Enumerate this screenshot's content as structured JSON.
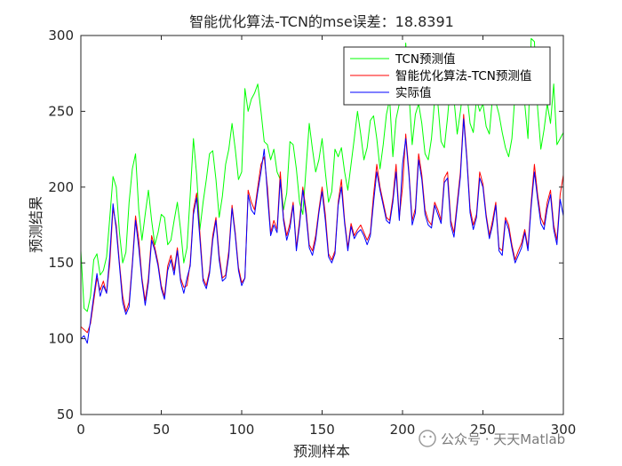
{
  "chart_data": {
    "type": "line",
    "title": "智能优化算法-TCN的mse误差：18.8391",
    "xlabel": "预测样本",
    "ylabel": "预测结果",
    "xlim": [
      0,
      300
    ],
    "ylim": [
      50,
      300
    ],
    "xticks": [
      "0",
      "50",
      "100",
      "150",
      "200",
      "250",
      "300"
    ],
    "yticks": [
      "50",
      "100",
      "150",
      "200",
      "250",
      "300"
    ],
    "grid": false,
    "legend_position": "top-right",
    "series": [
      {
        "name": "TCN预测值",
        "color": "#00ff00",
        "x": [
          0,
          2,
          4,
          6,
          8,
          10,
          12,
          14,
          16,
          18,
          20,
          22,
          24,
          26,
          28,
          30,
          32,
          34,
          36,
          38,
          40,
          42,
          44,
          46,
          48,
          50,
          52,
          54,
          56,
          58,
          60,
          62,
          64,
          66,
          68,
          70,
          72,
          74,
          76,
          78,
          80,
          82,
          84,
          86,
          88,
          90,
          92,
          94,
          96,
          98,
          100,
          102,
          104,
          106,
          108,
          110,
          112,
          114,
          116,
          118,
          120,
          122,
          124,
          126,
          128,
          130,
          132,
          134,
          136,
          138,
          140,
          142,
          144,
          146,
          148,
          150,
          152,
          154,
          156,
          158,
          160,
          162,
          164,
          166,
          168,
          170,
          172,
          174,
          176,
          178,
          180,
          182,
          184,
          186,
          188,
          190,
          192,
          194,
          196,
          198,
          200,
          202,
          204,
          206,
          208,
          210,
          212,
          214,
          216,
          218,
          220,
          222,
          224,
          226,
          228,
          230,
          232,
          234,
          236,
          238,
          240,
          242,
          244,
          246,
          248,
          250,
          252,
          254,
          256,
          258,
          260,
          262,
          264,
          266,
          268,
          270,
          272,
          274,
          276,
          278,
          280,
          282,
          284,
          286,
          288,
          290,
          292,
          294,
          296,
          298,
          300
        ],
        "y": [
          158,
          120,
          118,
          128,
          152,
          156,
          142,
          145,
          154,
          180,
          207,
          200,
          170,
          150,
          157,
          190,
          212,
          222,
          185,
          165,
          182,
          198,
          178,
          162,
          170,
          182,
          180,
          162,
          165,
          178,
          190,
          172,
          150,
          160,
          195,
          232,
          208,
          172,
          190,
          205,
          222,
          224,
          205,
          180,
          194,
          215,
          225,
          242,
          225,
          205,
          210,
          265,
          250,
          258,
          262,
          268,
          250,
          230,
          228,
          218,
          225,
          210,
          205,
          185,
          196,
          230,
          228,
          212,
          190,
          182,
          212,
          242,
          225,
          210,
          218,
          232,
          210,
          190,
          197,
          225,
          220,
          226,
          210,
          198,
          215,
          232,
          250,
          235,
          218,
          226,
          244,
          247,
          232,
          212,
          228,
          248,
          258,
          220,
          245,
          255,
          260,
          295,
          262,
          228,
          248,
          255,
          242,
          222,
          218,
          232,
          258,
          255,
          230,
          226,
          246,
          270,
          258,
          235,
          250,
          268,
          262,
          242,
          236,
          258,
          250,
          255,
          240,
          235,
          260,
          256,
          248,
          236,
          226,
          220,
          232,
          262,
          270,
          282,
          255,
          232,
          298,
          296,
          252,
          225,
          238,
          255,
          242,
          268,
          228,
          232,
          236
        ]
      },
      {
        "name": "智能优化算法-TCN预测值",
        "color": "#ff0000",
        "x": [
          0,
          2,
          4,
          6,
          8,
          10,
          12,
          14,
          16,
          18,
          20,
          22,
          24,
          26,
          28,
          30,
          32,
          34,
          36,
          38,
          40,
          42,
          44,
          46,
          48,
          50,
          52,
          54,
          56,
          58,
          60,
          62,
          64,
          66,
          68,
          70,
          72,
          74,
          76,
          78,
          80,
          82,
          84,
          86,
          88,
          90,
          92,
          94,
          96,
          98,
          100,
          102,
          104,
          106,
          108,
          110,
          112,
          114,
          116,
          118,
          120,
          122,
          124,
          126,
          128,
          130,
          132,
          134,
          136,
          138,
          140,
          142,
          144,
          146,
          148,
          150,
          152,
          154,
          156,
          158,
          160,
          162,
          164,
          166,
          168,
          170,
          172,
          174,
          176,
          178,
          180,
          182,
          184,
          186,
          188,
          190,
          192,
          194,
          196,
          198,
          200,
          202,
          204,
          206,
          208,
          210,
          212,
          214,
          216,
          218,
          220,
          222,
          224,
          226,
          228,
          230,
          232,
          234,
          236,
          238,
          240,
          242,
          244,
          246,
          248,
          250,
          252,
          254,
          256,
          258,
          260,
          262,
          264,
          266,
          268,
          270,
          272,
          274,
          276,
          278,
          280,
          282,
          284,
          286,
          288,
          290,
          292,
          294,
          296,
          298,
          300
        ],
        "y": [
          108,
          106,
          104,
          110,
          125,
          140,
          132,
          138,
          130,
          150,
          186,
          175,
          150,
          128,
          118,
          124,
          150,
          181,
          165,
          140,
          125,
          140,
          168,
          160,
          150,
          135,
          128,
          148,
          155,
          145,
          160,
          140,
          134,
          135,
          150,
          185,
          196,
          170,
          140,
          135,
          145,
          168,
          180,
          155,
          140,
          142,
          158,
          188,
          170,
          147,
          137,
          140,
          198,
          190,
          185,
          200,
          215,
          220,
          200,
          170,
          178,
          172,
          210,
          180,
          168,
          176,
          190,
          160,
          178,
          200,
          185,
          162,
          158,
          168,
          185,
          200,
          182,
          156,
          152,
          158,
          190,
          205,
          178,
          160,
          176,
          168,
          172,
          175,
          170,
          165,
          170,
          195,
          215,
          200,
          190,
          180,
          178,
          193,
          215,
          180,
          200,
          235,
          210,
          178,
          186,
          222,
          208,
          185,
          178,
          175,
          190,
          185,
          178,
          206,
          210,
          178,
          170,
          190,
          210,
          248,
          220,
          186,
          175,
          182,
          210,
          202,
          182,
          168,
          178,
          190,
          160,
          158,
          180,
          175,
          162,
          152,
          158,
          163,
          172,
          160,
          190,
          215,
          195,
          180,
          175,
          190,
          198,
          175,
          165,
          195,
          208
        ]
      },
      {
        "name": "实际值",
        "color": "#0000ff",
        "x": [
          0,
          2,
          4,
          6,
          8,
          10,
          12,
          14,
          16,
          18,
          20,
          22,
          24,
          26,
          28,
          30,
          32,
          34,
          36,
          38,
          40,
          42,
          44,
          46,
          48,
          50,
          52,
          54,
          56,
          58,
          60,
          62,
          64,
          66,
          68,
          70,
          72,
          74,
          76,
          78,
          80,
          82,
          84,
          86,
          88,
          90,
          92,
          94,
          96,
          98,
          100,
          102,
          104,
          106,
          108,
          110,
          112,
          114,
          116,
          118,
          120,
          122,
          124,
          126,
          128,
          130,
          132,
          134,
          136,
          138,
          140,
          142,
          144,
          146,
          148,
          150,
          152,
          154,
          156,
          158,
          160,
          162,
          164,
          166,
          168,
          170,
          172,
          174,
          176,
          178,
          180,
          182,
          184,
          186,
          188,
          190,
          192,
          194,
          196,
          198,
          200,
          202,
          204,
          206,
          208,
          210,
          212,
          214,
          216,
          218,
          220,
          222,
          224,
          226,
          228,
          230,
          232,
          234,
          236,
          238,
          240,
          242,
          244,
          246,
          248,
          250,
          252,
          254,
          256,
          258,
          260,
          262,
          264,
          266,
          268,
          270,
          272,
          274,
          276,
          278,
          280,
          282,
          284,
          286,
          288,
          290,
          292,
          294,
          296,
          298,
          300
        ],
        "y": [
          100,
          102,
          97,
          112,
          128,
          143,
          128,
          135,
          130,
          155,
          189,
          172,
          148,
          124,
          116,
          121,
          148,
          178,
          160,
          138,
          122,
          137,
          165,
          158,
          148,
          133,
          126,
          145,
          152,
          142,
          158,
          138,
          130,
          140,
          148,
          182,
          193,
          166,
          138,
          133,
          143,
          165,
          178,
          152,
          138,
          140,
          155,
          186,
          168,
          145,
          135,
          140,
          195,
          185,
          182,
          197,
          210,
          225,
          195,
          168,
          175,
          170,
          205,
          178,
          165,
          173,
          188,
          158,
          175,
          198,
          182,
          160,
          155,
          165,
          183,
          197,
          178,
          154,
          150,
          156,
          188,
          200,
          176,
          158,
          174,
          166,
          170,
          172,
          168,
          162,
          168,
          190,
          210,
          198,
          188,
          178,
          176,
          190,
          210,
          178,
          215,
          232,
          208,
          175,
          183,
          218,
          205,
          182,
          175,
          173,
          188,
          182,
          176,
          203,
          206,
          175,
          167,
          187,
          207,
          245,
          218,
          183,
          172,
          180,
          206,
          200,
          180,
          166,
          175,
          188,
          158,
          155,
          178,
          172,
          160,
          150,
          155,
          160,
          170,
          158,
          187,
          210,
          192,
          176,
          172,
          186,
          195,
          172,
          162,
          192,
          181
        ]
      }
    ],
    "watermark": "公众号 · 天天Matlab"
  }
}
